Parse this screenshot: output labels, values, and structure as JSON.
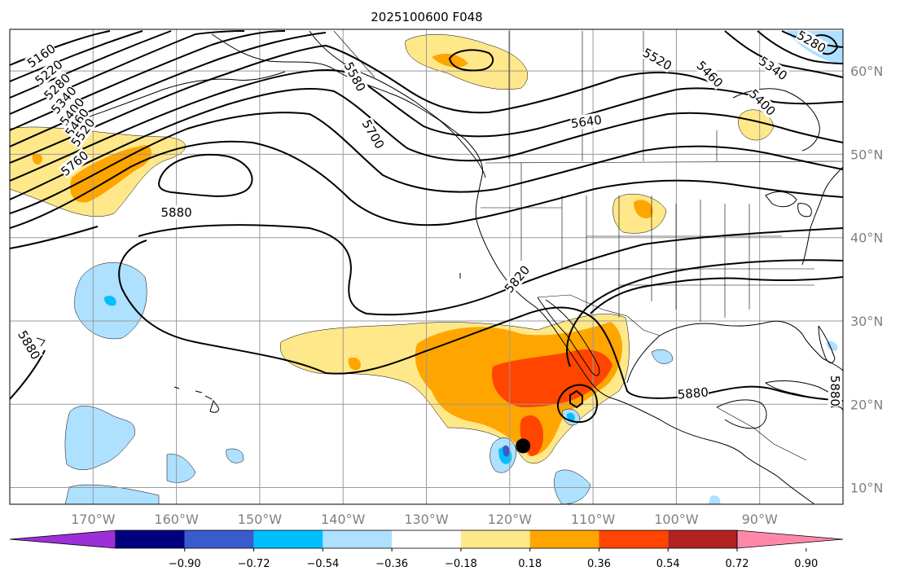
{
  "title": "2025100600 F048",
  "map": {
    "lon_range": [
      -180,
      -80
    ],
    "lat_range": [
      8,
      65
    ],
    "lon_ticks": [
      {
        "value": -170,
        "label": "170°W"
      },
      {
        "value": -160,
        "label": "160°W"
      },
      {
        "value": -150,
        "label": "150°W"
      },
      {
        "value": -140,
        "label": "140°W"
      },
      {
        "value": -130,
        "label": "130°W"
      },
      {
        "value": -120,
        "label": "120°W"
      },
      {
        "value": -110,
        "label": "110°W"
      },
      {
        "value": -100,
        "label": "100°W"
      },
      {
        "value": -90,
        "label": "90°W"
      }
    ],
    "lat_ticks": [
      {
        "value": 10,
        "label": "10°N"
      },
      {
        "value": 20,
        "label": "20°N"
      },
      {
        "value": 30,
        "label": "30°N"
      },
      {
        "value": 40,
        "label": "40°N"
      },
      {
        "value": 50,
        "label": "50°N"
      },
      {
        "value": 60,
        "label": "60°N"
      }
    ],
    "grid": true,
    "gridline_color": "#999999"
  },
  "contour_labels": [
    {
      "text": "5160",
      "lon": -176.2,
      "lat": 61.8,
      "angle": -35
    },
    {
      "text": "5220",
      "lon": -175.3,
      "lat": 59.8,
      "angle": -40
    },
    {
      "text": "5280",
      "lon": -174.3,
      "lat": 58.1,
      "angle": -45
    },
    {
      "text": "5340",
      "lon": -173.5,
      "lat": 56.5,
      "angle": -50
    },
    {
      "text": "5400",
      "lon": -172.5,
      "lat": 55.1,
      "angle": -52
    },
    {
      "text": "5460",
      "lon": -171.9,
      "lat": 53.8,
      "angle": -55
    },
    {
      "text": "5520",
      "lon": -171.2,
      "lat": 52.6,
      "angle": -55
    },
    {
      "text": "5580",
      "lon": -138.6,
      "lat": 59.3,
      "angle": 62
    },
    {
      "text": "5640",
      "lon": -110.8,
      "lat": 53.9,
      "angle": -8
    },
    {
      "text": "5700",
      "lon": -136.4,
      "lat": 52.4,
      "angle": 60
    },
    {
      "text": "5760",
      "lon": -172.2,
      "lat": 48.9,
      "angle": -40
    },
    {
      "text": "5880",
      "lon": -160.0,
      "lat": 43.0,
      "angle": 0
    },
    {
      "text": "5820",
      "lon": -119.1,
      "lat": 35.0,
      "angle": -50
    },
    {
      "text": "5880",
      "lon": -177.7,
      "lat": 27.1,
      "angle": 60
    },
    {
      "text": "5880",
      "lon": -98.0,
      "lat": 21.3,
      "angle": -5
    },
    {
      "text": "5880",
      "lon": -81.0,
      "lat": 21.6,
      "angle": 90
    },
    {
      "text": "5520",
      "lon": -102.3,
      "lat": 61.4,
      "angle": 30
    },
    {
      "text": "5460",
      "lon": -96.0,
      "lat": 59.6,
      "angle": 45
    },
    {
      "text": "5400",
      "lon": -89.7,
      "lat": 56.2,
      "angle": 45
    },
    {
      "text": "5340",
      "lon": -88.4,
      "lat": 60.3,
      "angle": 35
    },
    {
      "text": "5280",
      "lon": -83.8,
      "lat": 63.5,
      "angle": 30
    }
  ],
  "storm_marker": {
    "lon": -118.4,
    "lat": 15.0
  },
  "colorbar": {
    "colors": [
      "#9b30d8",
      "#000080",
      "#3a5bcc",
      "#00bfff",
      "#aee0ff",
      "#ffffff",
      "#ffe88a",
      "#ffa500",
      "#ff4500",
      "#b22222",
      "#ff88aa"
    ],
    "ticks": [
      "−0.90",
      "−0.72",
      "−0.54",
      "−0.36",
      "−0.18",
      "0.18",
      "0.36",
      "0.54",
      "0.72",
      "0.90"
    ]
  }
}
